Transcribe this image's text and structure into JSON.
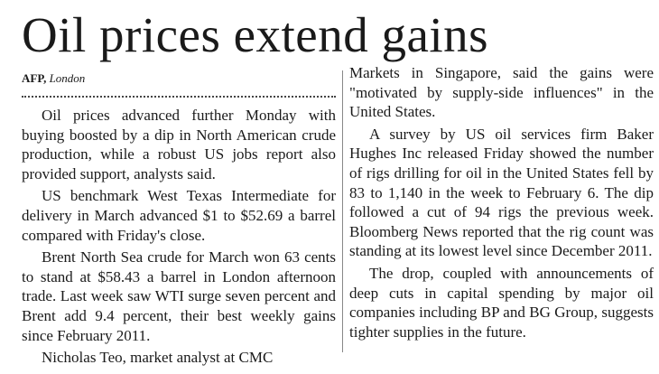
{
  "article": {
    "headline": "Oil prices extend gains",
    "byline": {
      "agency": "AFP,",
      "place": "London"
    },
    "left_column": [
      "Oil prices advanced further Monday with buying boosted by a dip in North American crude production, while a robust US jobs report also provided support, analysts said.",
      "US benchmark West Texas Intermediate for delivery in March advanced $1 to $52.69 a barrel compared with Friday's close.",
      "Brent North Sea crude for March won 63 cents to stand at $58.43 a barrel in London afternoon trade. Last week saw WTI surge seven percent and Brent add 9.4 percent, their best weekly gains since February 2011.",
      "Nicholas Teo, market analyst at CMC"
    ],
    "right_column": [
      "Markets in Singapore, said the gains were \"motivated by supply-side influences\" in the United States.",
      "A survey by US oil services firm Baker Hughes Inc released Friday showed the number of rigs drilling for oil in the United States fell by 83 to 1,140 in the week to February 6. The dip followed a cut of 94 rigs the previous week. Bloomberg News reported that the rig count was standing at its lowest level since December 2011.",
      "The drop, coupled with announcements of deep cuts in capital spending by major oil companies including BP and BG Group, suggests tighter supplies in the future."
    ]
  }
}
